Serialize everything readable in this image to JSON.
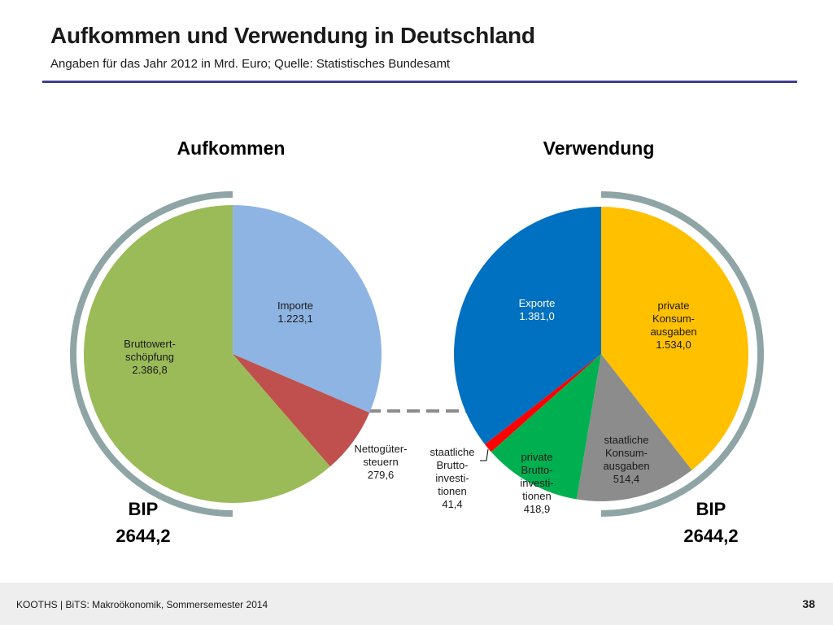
{
  "header": {
    "title": "Aufkommen und Verwendung in Deutschland",
    "subtitle": "Angaben für das Jahr 2012 in Mrd. Euro; Quelle: Statistisches Bundesamt"
  },
  "chart_data": [
    {
      "type": "pie",
      "title": "Aufkommen",
      "slices": [
        {
          "label": [
            "Importe",
            "1.223,1"
          ],
          "value": 1223.1,
          "color": "#8eb4e3"
        },
        {
          "label": [
            "Nettogüter-",
            "steuern",
            "279,6"
          ],
          "value": 279.6,
          "color": "#c0504d"
        },
        {
          "label": [
            "Bruttowert-",
            "schöpfung",
            "2.386,8"
          ],
          "value": 2386.8,
          "color": "#9bbb59"
        }
      ],
      "total_label": [
        "BIP",
        "2644,2"
      ]
    },
    {
      "type": "pie",
      "title": "Verwendung",
      "slices": [
        {
          "label": [
            "private",
            "Konsum-",
            "ausgaben",
            "1.534,0"
          ],
          "value": 1534.0,
          "color": "#ffc000"
        },
        {
          "label": [
            "staatliche",
            "Konsum-",
            "ausgaben",
            "514,4"
          ],
          "value": 514.4,
          "color": "#8c8c8c"
        },
        {
          "label": [
            "private",
            "Brutto-",
            "investi-",
            "tionen",
            "418,9"
          ],
          "value": 418.9,
          "color": "#00b050"
        },
        {
          "label": [
            "staatliche",
            "Brutto-",
            "investi-",
            "tionen",
            "41,4"
          ],
          "value": 41.4,
          "color": "#ff0000"
        },
        {
          "label": [
            "Exporte",
            "1.381,0"
          ],
          "value": 1381.0,
          "color": "#0070c0"
        }
      ],
      "total_label": [
        "BIP",
        "2644,2"
      ]
    }
  ],
  "footer": {
    "text": "KOOTHS | BiTS: Makroökonomik, Sommersemester 2014",
    "page": "38"
  },
  "colors": {
    "rule": "#3f3f8f",
    "ring": "#8fa5a5",
    "connector": "#8c8c8c"
  }
}
